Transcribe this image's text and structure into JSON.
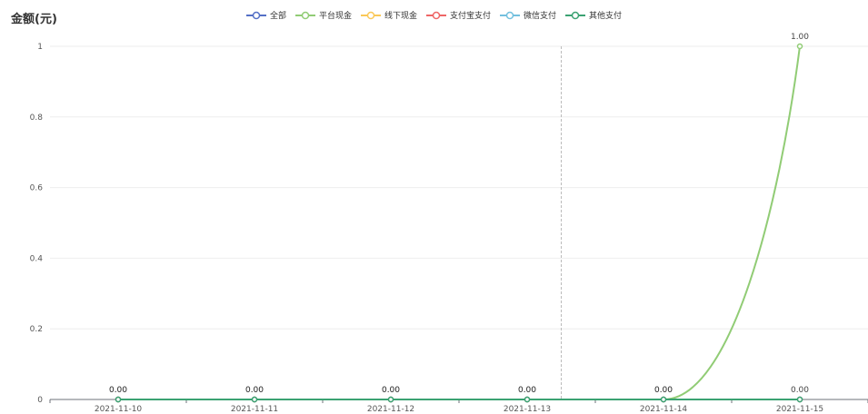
{
  "chart_data": {
    "type": "line",
    "title": "金额(元)",
    "categories": [
      "2021-11-10",
      "2021-11-11",
      "2021-11-12",
      "2021-11-13",
      "2021-11-14",
      "2021-11-15"
    ],
    "ylim": [
      0,
      1
    ],
    "yticks": [
      "0",
      "0.2",
      "0.4",
      "0.6",
      "0.8",
      "1"
    ],
    "legend_position": "top-center",
    "grid": true,
    "series": [
      {
        "name": "全部",
        "color": "#5470c6",
        "values": [
          0,
          0,
          0,
          0,
          0,
          0
        ]
      },
      {
        "name": "平台现金",
        "color": "#91cc75",
        "values": [
          0,
          0,
          0,
          0,
          0,
          1
        ],
        "labels": [
          "0.00",
          "0.00",
          "0.00",
          "0.00",
          "0.00",
          "1.00"
        ]
      },
      {
        "name": "线下现金",
        "color": "#fac858",
        "values": [
          0,
          0,
          0,
          0,
          0,
          0
        ]
      },
      {
        "name": "支付宝支付",
        "color": "#ee6666",
        "values": [
          0,
          0,
          0,
          0,
          0,
          0
        ]
      },
      {
        "name": "微信支付",
        "color": "#73c0de",
        "values": [
          0,
          0,
          0,
          0,
          0,
          0
        ]
      },
      {
        "name": "其他支付",
        "color": "#3ba272",
        "values": [
          0,
          0,
          0,
          0,
          0,
          0
        ],
        "labels": [
          "0.00",
          "0.00",
          "0.00",
          "0.00",
          "0.00",
          "0.00"
        ]
      }
    ]
  }
}
